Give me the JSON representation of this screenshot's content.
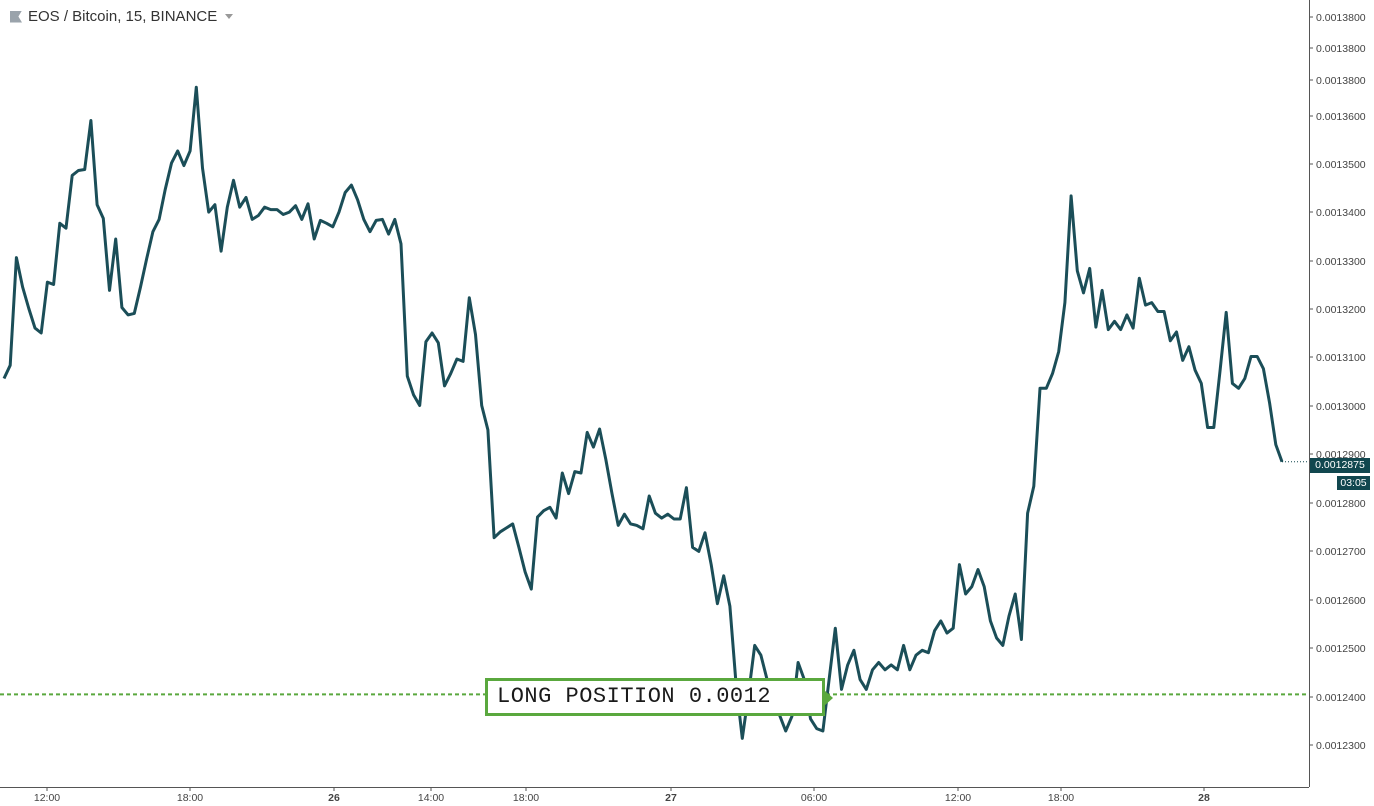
{
  "header": {
    "symbol_title": "EOS / Bitcoin, 15, BINANCE"
  },
  "price_axis": {
    "last_price_label": "0.0012875",
    "countdown_label": "03:05"
  },
  "annotation": {
    "long_position_label": "LONG POSITION 0.0012"
  },
  "colors": {
    "series_line": "#1b4e58",
    "position_line": "#5aa83e",
    "badge_bg": "#11474f",
    "axis_text": "#444444"
  },
  "chart_data": {
    "type": "line",
    "title": "EOS / Bitcoin, 15, BINANCE",
    "xlabel": "",
    "ylabel": "",
    "ylim": [
      0.0012225,
      0.001381
    ],
    "y_ticks": [
      "0.0013800",
      "0.0013800",
      "0.0013800",
      "0.0013600",
      "0.0013500",
      "0.0013400",
      "0.0013300",
      "0.0013200",
      "0.0013100",
      "0.0013000",
      "0.0012900",
      "0.0012800",
      "0.0012700",
      "0.0012600",
      "0.0012500",
      "0.0012400",
      "0.0012300"
    ],
    "x_ticks": [
      "12:00",
      "18:00",
      "26",
      "14:00",
      "18:00",
      "27",
      "06:00",
      "12:00",
      "18:00",
      "28"
    ],
    "grid": false,
    "last_value": 0.0012875,
    "position_level": 0.00124,
    "series": [
      {
        "values": [
          0.0013045,
          0.0013072,
          0.0013292,
          0.0013232,
          0.0013188,
          0.0013148,
          0.0013138,
          0.0013242,
          0.0013237,
          0.0013362,
          0.0013352,
          0.001346,
          0.001347,
          0.0013472,
          0.0013572,
          0.00134,
          0.0013372,
          0.0013225,
          0.001333,
          0.001319,
          0.0013175,
          0.0013178,
          0.0013232,
          0.001329,
          0.0013345,
          0.001337,
          0.0013432,
          0.0013485,
          0.001351,
          0.001348,
          0.001351,
          0.001364,
          0.0013475,
          0.0013385,
          0.00134,
          0.0013305,
          0.0013395,
          0.001345,
          0.0013395,
          0.0013415,
          0.001337,
          0.0013378,
          0.0013395,
          0.001339,
          0.001339,
          0.001338,
          0.0013385,
          0.0013398,
          0.001337,
          0.0013402,
          0.001333,
          0.0013368,
          0.0013362,
          0.0013355,
          0.0013385,
          0.0013425,
          0.001344,
          0.001341,
          0.001337,
          0.0013345,
          0.0013368,
          0.001337,
          0.001334,
          0.001337,
          0.001332,
          0.001305,
          0.0013012,
          0.001299,
          0.001312,
          0.0013138,
          0.0013118,
          0.001303,
          0.0013055,
          0.0013085,
          0.001308,
          0.001321,
          0.0013135,
          0.001299,
          0.001294,
          0.001272,
          0.0012732,
          0.001274,
          0.0012748,
          0.00127,
          0.001265,
          0.0012615,
          0.0012762,
          0.0012775,
          0.0012782,
          0.001276,
          0.0012852,
          0.001281,
          0.0012855,
          0.0012852,
          0.0012935,
          0.0012905,
          0.0012942,
          0.001288,
          0.001281,
          0.0012745,
          0.0012768,
          0.0012748,
          0.0012745,
          0.0012738,
          0.0012805,
          0.001277,
          0.001276,
          0.0012768,
          0.0012758,
          0.0012758,
          0.0012822,
          0.00127,
          0.0012692,
          0.001273,
          0.0012665,
          0.0012585,
          0.0012642,
          0.001258,
          0.001242,
          0.001231,
          0.00124,
          0.00125,
          0.001248,
          0.001243,
          0.001242,
          0.0012358,
          0.0012325,
          0.0012355,
          0.0012465,
          0.001243,
          0.001235,
          0.001233,
          0.0012325,
          0.001243,
          0.0012535,
          0.001241,
          0.001246,
          0.001249,
          0.001243,
          0.001241,
          0.001245,
          0.0012465,
          0.001245,
          0.001246,
          0.001245,
          0.00125,
          0.001245,
          0.001248,
          0.001249,
          0.0012485,
          0.001253,
          0.001255,
          0.0012525,
          0.0012535,
          0.0012665,
          0.0012605,
          0.001262,
          0.0012655,
          0.001262,
          0.001255,
          0.0012515,
          0.00125,
          0.001256,
          0.0012605,
          0.0012512,
          0.001277,
          0.0012825,
          0.0013025,
          0.0013025,
          0.0013055,
          0.00131,
          0.00132,
          0.0013418,
          0.0013265,
          0.001322,
          0.001327,
          0.001315,
          0.0013225,
          0.0013145,
          0.0013162,
          0.0013145,
          0.0013175,
          0.0013148,
          0.001325,
          0.0013195,
          0.00132,
          0.0013182,
          0.0013182,
          0.0013122,
          0.001314,
          0.0013082,
          0.001311,
          0.0013062,
          0.0013035,
          0.0012945,
          0.0012945,
          0.001306,
          0.001318,
          0.0013035,
          0.0013025,
          0.0013045,
          0.001309,
          0.001309,
          0.0013065,
          0.0012995,
          0.001291,
          0.0012875
        ]
      }
    ]
  }
}
